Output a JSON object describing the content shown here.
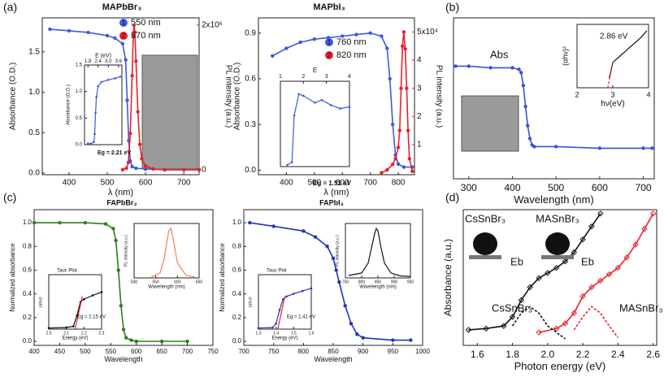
{
  "chart_data": [
    {
      "type": "line",
      "panel_label": "(a)",
      "title": "MAPbBr₃",
      "x_label": "λ (nm)",
      "y_label": "Absorbance (O.D.)",
      "y2_label": "PL intensity (a.u.)",
      "xlim": [
        330,
        740
      ],
      "ylim": [
        -0.02,
        1.92
      ],
      "y2lim": [
        -70000,
        2100000
      ],
      "xticks": [
        400,
        500,
        600,
        700
      ],
      "yticks": [
        {
          "value": 0,
          "label": "0.0"
        },
        0.5,
        {
          "value": 1,
          "label": "1.0"
        },
        1.5
      ],
      "y2ticks": [
        0,
        {
          "value": 2000000,
          "label": "2x10⁶"
        }
      ],
      "series": [
        {
          "name": "550 nm",
          "number": "1",
          "color": "#3b5bdb",
          "marker": "circle",
          "x": [
            350,
            400,
            450,
            500,
            520,
            540,
            548,
            552,
            556,
            560,
            565,
            575,
            600,
            650,
            700,
            740
          ],
          "values": [
            1.78,
            1.76,
            1.74,
            1.7,
            1.67,
            1.6,
            1.4,
            0.9,
            0.4,
            0.15,
            0.08,
            0.06,
            0.05,
            0.04,
            0.04,
            0.04
          ]
        },
        {
          "name": "570 nm",
          "number": "2",
          "color": "#e8212a",
          "marker": "circle",
          "axis": "y2",
          "x": [
            540,
            550,
            555,
            560,
            565,
            568,
            570,
            572,
            575,
            580,
            585,
            590,
            600,
            620,
            650,
            700,
            740
          ],
          "values": [
            0,
            20000,
            100000,
            500000,
            1300000,
            1850000,
            2000000,
            1900000,
            1500000,
            800000,
            350000,
            150000,
            50000,
            10000,
            0,
            0,
            0
          ]
        }
      ]
    },
    {
      "type": "line",
      "x_axis": "top",
      "x_label": "E (eV)",
      "y_label": "Absorbance (O.D.)",
      "xlim": [
        1.6,
        3.8
      ],
      "ylim": [
        0,
        1.5
      ],
      "xticks": [
        1.8,
        2.4,
        {
          "value": 3,
          "label": "3.0"
        },
        3.6
      ],
      "yticks": [
        {
          "value": 0,
          "label": "0.0"
        },
        0.5,
        {
          "value": 1,
          "label": "1.0"
        },
        1.5
      ],
      "annotations": [
        "Eg = 2.21 eV"
      ],
      "series": [
        {
          "color": "#3b5bdb",
          "marker": "circle",
          "x": [
            1.8,
            2.0,
            2.15,
            2.2,
            2.25,
            2.3,
            2.4,
            2.6,
            3.0,
            3.4,
            3.7
          ],
          "values": [
            0.02,
            0.02,
            0.05,
            0.2,
            0.6,
            0.9,
            1.1,
            1.18,
            1.22,
            1.25,
            1.28
          ]
        }
      ]
    },
    {
      "type": "line",
      "title": "MAPbI₃",
      "x_label": "λ (nm)",
      "y_label": "Absorbance (O.D.)",
      "y2_label": "PL intensity (a.u.)",
      "xlim": [
        300,
        858
      ],
      "ylim": [
        -0.03,
        1.0
      ],
      "y2lim": [
        -700,
        55000
      ],
      "xticks": [
        400,
        500,
        600,
        700,
        800
      ],
      "yticks": [
        {
          "value": 0,
          "label": "0.0"
        },
        0.3,
        0.6,
        0.9
      ],
      "y2ticks": [
        {
          "value": 10000,
          "label": "1"
        },
        {
          "value": 20000,
          "label": "2"
        },
        {
          "value": 30000,
          "label": "3"
        },
        {
          "value": 40000,
          "label": "4"
        },
        {
          "value": 50000,
          "label": "5x10⁴"
        }
      ],
      "series": [
        {
          "name": "760 nm",
          "number": "1",
          "color": "#3b5bdb",
          "marker": "circle",
          "x": [
            350,
            400,
            450,
            500,
            550,
            600,
            650,
            700,
            740,
            760,
            770,
            780,
            790,
            800,
            820,
            850
          ],
          "values": [
            0.75,
            0.8,
            0.84,
            0.86,
            0.87,
            0.88,
            0.89,
            0.9,
            0.88,
            0.8,
            0.6,
            0.3,
            0.1,
            0.04,
            0.02,
            0.02
          ]
        },
        {
          "name": "820 nm",
          "number": "2",
          "color": "#e8212a",
          "marker": "circle",
          "axis": "y2",
          "x": [
            740,
            760,
            780,
            790,
            800,
            805,
            810,
            815,
            820,
            825,
            830,
            835,
            840,
            850
          ],
          "values": [
            0,
            1000,
            3000,
            5000,
            9000,
            15000,
            30000,
            45000,
            50000,
            44000,
            30000,
            15000,
            5000,
            500
          ]
        }
      ]
    },
    {
      "type": "line",
      "x_axis": "top",
      "x_label": "E",
      "xlim": [
        1,
        4
      ],
      "ylim": [
        0,
        1
      ],
      "xticks": [
        1,
        2,
        3,
        4
      ],
      "annotations": [
        "Eg = 1.51 eV"
      ],
      "series": [
        {
          "color": "#3b5bdb",
          "marker": "circle",
          "x": [
            1.3,
            1.5,
            1.6,
            1.8,
            2.0,
            2.5,
            2.8,
            3.2,
            3.6,
            4.0
          ],
          "values": [
            0.02,
            0.05,
            0.6,
            0.85,
            0.83,
            0.75,
            0.78,
            0.72,
            0.68,
            0.7
          ]
        }
      ]
    },
    {
      "type": "line",
      "panel_label": "(b)",
      "x_label": "Wavelength (nm)",
      "xlim": [
        265,
        725
      ],
      "ylim": [
        0,
        1
      ],
      "xticks": [
        300,
        400,
        500,
        600,
        700
      ],
      "series": [
        {
          "name": "Abs",
          "color": "#3b4fd8",
          "marker": "circle",
          "x": [
            270,
            300,
            350,
            400,
            415,
            420,
            425,
            430,
            435,
            440,
            445,
            450,
            500,
            600,
            700,
            720
          ],
          "values": [
            0.7,
            0.7,
            0.69,
            0.69,
            0.68,
            0.66,
            0.58,
            0.45,
            0.33,
            0.25,
            0.21,
            0.2,
            0.2,
            0.19,
            0.19,
            0.19
          ]
        }
      ]
    },
    {
      "type": "line",
      "x_label": "hν(eV)",
      "y_label": "(αhν)²",
      "xlim": [
        2,
        4
      ],
      "ylim": [
        0,
        1
      ],
      "xticks": [
        2,
        3,
        4
      ],
      "annotations": [
        "2.86 eV"
      ],
      "series": [
        {
          "color": "#111111",
          "x": [
            2.9,
            3.0,
            3.2,
            3.4,
            3.6,
            3.8,
            3.95
          ],
          "values": [
            0.15,
            0.4,
            0.5,
            0.6,
            0.7,
            0.8,
            0.9
          ]
        },
        {
          "color": "#e8212a",
          "dashed": true,
          "x": [
            2.86,
            3.0
          ],
          "values": [
            0,
            0.4
          ]
        }
      ]
    },
    {
      "type": "line",
      "panel_label": "(c)",
      "title": "FAPbBr₃",
      "x_label": "Wavelength",
      "y_label": "Normalized absorbance",
      "xlim": [
        400,
        750
      ],
      "ylim": [
        -0.034,
        1.11
      ],
      "xticks": [
        400,
        450,
        500,
        550,
        600,
        650,
        700,
        750
      ],
      "yticks": [
        {
          "value": 0,
          "label": "0.0"
        },
        0.2,
        0.4,
        0.6,
        0.8,
        {
          "value": 1,
          "label": "1.0"
        }
      ],
      "series": [
        {
          "color": "#2e7d1e",
          "marker": "circle",
          "x": [
            400,
            450,
            500,
            540,
            555,
            560,
            565,
            570,
            575,
            580,
            590,
            600,
            650,
            700
          ],
          "values": [
            1,
            1,
            1,
            0.99,
            0.95,
            0.85,
            0.6,
            0.3,
            0.1,
            0.03,
            0.01,
            0,
            0,
            0
          ]
        }
      ]
    },
    {
      "type": "line",
      "x_label": "Energy (eV)",
      "y_label": "(αhν)²",
      "xlim": [
        2.0,
        2.3
      ],
      "ylim": [
        0,
        1
      ],
      "xticks": [
        {
          "value": 2,
          "label": "2.0"
        },
        2.1,
        2.2,
        2.3
      ],
      "annotations": [
        "Tauc Plot",
        "Eg = 2.15 eV"
      ],
      "series": [
        {
          "color": "#111111",
          "marker": "circle",
          "x": [
            2.0,
            2.1,
            2.14,
            2.16,
            2.18,
            2.2,
            2.25,
            2.3
          ],
          "values": [
            0.02,
            0.03,
            0.05,
            0.25,
            0.5,
            0.55,
            0.62,
            0.68
          ]
        },
        {
          "color": "#e8212a",
          "x": [
            2.15,
            2.19
          ],
          "values": [
            0,
            0.6
          ]
        }
      ]
    },
    {
      "type": "line",
      "x_label": "Wavelength (nm)",
      "y_label": "PL intensity (a.u.)",
      "xlim": [
        500,
        650
      ],
      "ylim": [
        0,
        1.1
      ],
      "xticks": [
        500,
        550,
        600,
        650
      ],
      "series": [
        {
          "color": "#f08060",
          "x": [
            540,
            560,
            570,
            575,
            580,
            585,
            590,
            600,
            620,
            640
          ],
          "values": [
            0.02,
            0.1,
            0.4,
            0.7,
            0.95,
            1,
            0.8,
            0.3,
            0.05,
            0.02
          ]
        }
      ]
    },
    {
      "type": "line",
      "title": "FAPbI₃",
      "x_label": "Wavelength",
      "y_label": "Normalized absorbance",
      "xlim": [
        700,
        1000
      ],
      "ylim": [
        -0.034,
        1.11
      ],
      "xticks": [
        700,
        750,
        800,
        850,
        900,
        950,
        1000
      ],
      "yticks": [
        {
          "value": 0,
          "label": "0.0"
        },
        0.2,
        0.4,
        0.6,
        0.8,
        {
          "value": 1,
          "label": "1.0"
        }
      ],
      "series": [
        {
          "color": "#2233bb",
          "marker": "circle",
          "x": [
            710,
            750,
            800,
            820,
            840,
            850,
            855,
            860,
            870,
            880,
            890,
            900,
            950,
            980
          ],
          "values": [
            1.0,
            0.97,
            0.93,
            0.88,
            0.8,
            0.7,
            0.6,
            0.5,
            0.3,
            0.15,
            0.06,
            0.03,
            0.01,
            0.01
          ]
        }
      ]
    },
    {
      "type": "line",
      "x_label": "Energy (eV)",
      "y_label": "(αhν)²",
      "xlim": [
        1.3,
        1.6
      ],
      "ylim": [
        0,
        1
      ],
      "xticks": [
        1.3,
        1.4,
        1.5,
        1.6
      ],
      "annotations": [
        "Tauc Plot",
        "Eg = 1.41 eV"
      ],
      "series": [
        {
          "color": "#3333aa",
          "marker": "circle",
          "x": [
            1.3,
            1.38,
            1.4,
            1.42,
            1.44,
            1.46,
            1.5,
            1.55,
            1.6
          ],
          "values": [
            0.02,
            0.03,
            0.1,
            0.35,
            0.55,
            0.6,
            0.65,
            0.7,
            0.75
          ]
        },
        {
          "color": "#e8212a",
          "x": [
            1.41,
            1.45
          ],
          "values": [
            0,
            0.6
          ]
        }
      ]
    },
    {
      "type": "line",
      "x_label": "Wavelength (nm)",
      "y_label": "PL intensity (a.u.)",
      "xlim": [
        750,
        950
      ],
      "ylim": [
        0,
        1.1
      ],
      "xticks": [
        750,
        800,
        850,
        900,
        950
      ],
      "series": [
        {
          "color": "#111111",
          "x": [
            760,
            800,
            820,
            830,
            840,
            845,
            850,
            860,
            870,
            890,
            920,
            950
          ],
          "values": [
            0.05,
            0.1,
            0.3,
            0.6,
            0.9,
            1,
            0.95,
            0.6,
            0.3,
            0.1,
            0.04,
            0.03
          ]
        }
      ]
    },
    {
      "type": "line",
      "panel_label": "(d)",
      "x_label": "Photon energy (eV)",
      "y_label": "Absorbance (a.u.)",
      "xlim": [
        1.52,
        2.62
      ],
      "ylim": [
        0,
        1.05
      ],
      "xticks": [
        1.6,
        1.8,
        {
          "value": 2,
          "label": "2.0"
        },
        2.2,
        2.4,
        2.6
      ],
      "annotations": [
        "CsSnBr₃",
        "MASnBr₃",
        "Eb",
        "Eb"
      ],
      "series": [
        {
          "name": "CsSnBr₃",
          "color": "#111111",
          "marker": "diamond",
          "x": [
            1.55,
            1.65,
            1.75,
            1.8,
            1.85,
            1.9,
            1.95,
            2.0,
            2.05,
            2.1,
            2.15,
            2.2,
            2.25,
            2.3
          ],
          "values": [
            0.12,
            0.13,
            0.15,
            0.22,
            0.35,
            0.45,
            0.52,
            0.56,
            0.6,
            0.65,
            0.72,
            0.82,
            0.92,
            1.02
          ]
        },
        {
          "name": "MASnBr₃",
          "color": "#e8212a",
          "marker": "diamond",
          "x": [
            1.95,
            2.05,
            2.1,
            2.15,
            2.2,
            2.25,
            2.3,
            2.35,
            2.4,
            2.45,
            2.5,
            2.55,
            2.6
          ],
          "values": [
            0.1,
            0.13,
            0.17,
            0.25,
            0.38,
            0.45,
            0.5,
            0.55,
            0.6,
            0.68,
            0.78,
            0.9,
            1.02
          ]
        },
        {
          "color": "#111111",
          "dashed": true,
          "x": [
            1.8,
            1.85,
            1.9,
            1.95,
            2.0,
            2.1
          ],
          "values": [
            0.15,
            0.25,
            0.3,
            0.25,
            0.15,
            0.05
          ]
        },
        {
          "color": "#e8212a",
          "dashed": true,
          "x": [
            2.15,
            2.2,
            2.25,
            2.3,
            2.35,
            2.4
          ],
          "values": [
            0.12,
            0.22,
            0.3,
            0.25,
            0.15,
            0.06
          ]
        }
      ]
    }
  ]
}
